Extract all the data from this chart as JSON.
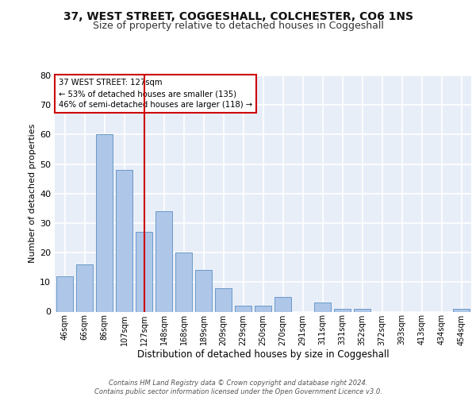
{
  "title1": "37, WEST STREET, COGGESHALL, COLCHESTER, CO6 1NS",
  "title2": "Size of property relative to detached houses in Coggeshall",
  "xlabel": "Distribution of detached houses by size in Coggeshall",
  "ylabel": "Number of detached properties",
  "bar_labels": [
    "46sqm",
    "66sqm",
    "86sqm",
    "107sqm",
    "127sqm",
    "148sqm",
    "168sqm",
    "189sqm",
    "209sqm",
    "229sqm",
    "250sqm",
    "270sqm",
    "291sqm",
    "311sqm",
    "331sqm",
    "352sqm",
    "372sqm",
    "393sqm",
    "413sqm",
    "434sqm",
    "454sqm"
  ],
  "bar_values": [
    12,
    16,
    60,
    48,
    27,
    34,
    20,
    14,
    8,
    2,
    2,
    5,
    0,
    3,
    1,
    1,
    0,
    0,
    0,
    0,
    1
  ],
  "bar_color": "#aec6e8",
  "bar_edge_color": "#5a8fc2",
  "vline_x": 4,
  "vline_color": "#cc0000",
  "annotation_line1": "37 WEST STREET: 127sqm",
  "annotation_line2": "← 53% of detached houses are smaller (135)",
  "annotation_line3": "46% of semi-detached houses are larger (118) →",
  "annotation_box_color": "#cc0000",
  "ylim": [
    0,
    80
  ],
  "yticks": [
    0,
    10,
    20,
    30,
    40,
    50,
    60,
    70,
    80
  ],
  "footer": "Contains HM Land Registry data © Crown copyright and database right 2024.\nContains public sector information licensed under the Open Government Licence v3.0.",
  "bg_color": "#e8eef8",
  "grid_color": "#ffffff",
  "title1_fontsize": 10,
  "title2_fontsize": 9,
  "xlabel_fontsize": 8.5,
  "ylabel_fontsize": 8
}
